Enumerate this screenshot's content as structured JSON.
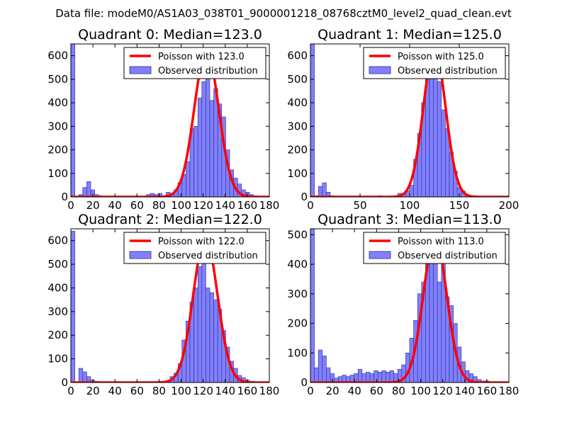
{
  "suptitle": "Data file: modeM0/AS1A03_038T01_9000001218_08768cztM0_level2_quad_clean.evt",
  "colors": {
    "hist_fill": "#8080ff",
    "hist_edge": "#2a2a8a",
    "poisson_line": "#ff0000",
    "axes": "#000000"
  },
  "chart_data": [
    {
      "type": "bar",
      "title": "Quadrant 0: Median=123.0",
      "xlim": [
        0,
        180
      ],
      "ylim": [
        0,
        650
      ],
      "xticks": [
        0,
        20,
        40,
        60,
        80,
        100,
        120,
        140,
        160,
        180
      ],
      "yticks": [
        0,
        100,
        200,
        300,
        400,
        500,
        600
      ],
      "legend": {
        "placement": "top-right",
        "line_label": "Poisson with 123.0",
        "bar_label": "Observed distribution"
      },
      "poisson_mean": 123.0,
      "poisson_peak": 620,
      "bin_width": 3.6,
      "hist": [
        {
          "x": 0,
          "v": 650
        },
        {
          "x": 7.2,
          "v": 10
        },
        {
          "x": 10.8,
          "v": 40
        },
        {
          "x": 14.4,
          "v": 65
        },
        {
          "x": 18,
          "v": 30
        },
        {
          "x": 21.6,
          "v": 10
        },
        {
          "x": 25.2,
          "v": 5
        },
        {
          "x": 28.8,
          "v": 3
        },
        {
          "x": 68.4,
          "v": 10
        },
        {
          "x": 72,
          "v": 15
        },
        {
          "x": 75.6,
          "v": 10
        },
        {
          "x": 79.2,
          "v": 15
        },
        {
          "x": 82.8,
          "v": 5
        },
        {
          "x": 86.4,
          "v": 20
        },
        {
          "x": 90,
          "v": 15
        },
        {
          "x": 93.6,
          "v": 30
        },
        {
          "x": 97.2,
          "v": 60
        },
        {
          "x": 100.8,
          "v": 95
        },
        {
          "x": 104.4,
          "v": 150
        },
        {
          "x": 108,
          "v": 290
        },
        {
          "x": 111.6,
          "v": 300
        },
        {
          "x": 115.2,
          "v": 420
        },
        {
          "x": 118.8,
          "v": 490
        },
        {
          "x": 122.4,
          "v": 580
        },
        {
          "x": 126,
          "v": 410
        },
        {
          "x": 129.6,
          "v": 460
        },
        {
          "x": 133.2,
          "v": 395
        },
        {
          "x": 136.8,
          "v": 340
        },
        {
          "x": 140.4,
          "v": 200
        },
        {
          "x": 144,
          "v": 115
        },
        {
          "x": 147.6,
          "v": 80
        },
        {
          "x": 151.2,
          "v": 55
        },
        {
          "x": 154.8,
          "v": 30
        },
        {
          "x": 158.4,
          "v": 20
        },
        {
          "x": 162,
          "v": 10
        },
        {
          "x": 165.6,
          "v": 5
        }
      ]
    },
    {
      "type": "bar",
      "title": "Quadrant 1: Median=125.0",
      "xlim": [
        0,
        200
      ],
      "ylim": [
        0,
        650
      ],
      "xticks": [
        0,
        50,
        100,
        150,
        200
      ],
      "yticks": [
        0,
        100,
        200,
        300,
        400,
        500,
        600
      ],
      "legend": {
        "placement": "top-right",
        "line_label": "Poisson with 125.0",
        "bar_label": "Observed distribution"
      },
      "poisson_mean": 125.0,
      "poisson_peak": 630,
      "bin_width": 4,
      "hist": [
        {
          "x": 0,
          "v": 650
        },
        {
          "x": 4,
          "v": 5
        },
        {
          "x": 8,
          "v": 45
        },
        {
          "x": 12,
          "v": 60
        },
        {
          "x": 16,
          "v": 20
        },
        {
          "x": 20,
          "v": 5
        },
        {
          "x": 68,
          "v": 5
        },
        {
          "x": 72,
          "v": 3
        },
        {
          "x": 84,
          "v": 5
        },
        {
          "x": 88,
          "v": 15
        },
        {
          "x": 92,
          "v": 10
        },
        {
          "x": 96,
          "v": 25
        },
        {
          "x": 100,
          "v": 50
        },
        {
          "x": 104,
          "v": 160
        },
        {
          "x": 108,
          "v": 270
        },
        {
          "x": 112,
          "v": 400
        },
        {
          "x": 116,
          "v": 530
        },
        {
          "x": 120,
          "v": 630
        },
        {
          "x": 124,
          "v": 600
        },
        {
          "x": 128,
          "v": 490
        },
        {
          "x": 132,
          "v": 370
        },
        {
          "x": 136,
          "v": 290
        },
        {
          "x": 140,
          "v": 190
        },
        {
          "x": 144,
          "v": 110
        },
        {
          "x": 148,
          "v": 40
        },
        {
          "x": 152,
          "v": 25
        },
        {
          "x": 156,
          "v": 10
        },
        {
          "x": 160,
          "v": 5
        },
        {
          "x": 164,
          "v": 5
        },
        {
          "x": 176,
          "v": 3
        }
      ]
    },
    {
      "type": "bar",
      "title": "Quadrant 2: Median=122.0",
      "xlim": [
        0,
        180
      ],
      "ylim": [
        0,
        650
      ],
      "xticks": [
        0,
        20,
        40,
        60,
        80,
        100,
        120,
        140,
        160,
        180
      ],
      "yticks": [
        0,
        100,
        200,
        300,
        400,
        500,
        600
      ],
      "legend": {
        "placement": "top-right",
        "line_label": "Poisson with 122.0",
        "bar_label": "Observed distribution"
      },
      "poisson_mean": 122.0,
      "poisson_peak": 610,
      "bin_width": 3.6,
      "hist": [
        {
          "x": 0,
          "v": 640
        },
        {
          "x": 7.2,
          "v": 60
        },
        {
          "x": 10.8,
          "v": 45
        },
        {
          "x": 14.4,
          "v": 25
        },
        {
          "x": 18,
          "v": 10
        },
        {
          "x": 21.6,
          "v": 5
        },
        {
          "x": 25.2,
          "v": 3
        },
        {
          "x": 57.6,
          "v": 3
        },
        {
          "x": 82.8,
          "v": 5
        },
        {
          "x": 86.4,
          "v": 5
        },
        {
          "x": 90,
          "v": 25
        },
        {
          "x": 93.6,
          "v": 40
        },
        {
          "x": 97.2,
          "v": 80
        },
        {
          "x": 100.8,
          "v": 180
        },
        {
          "x": 104.4,
          "v": 260
        },
        {
          "x": 108,
          "v": 340
        },
        {
          "x": 111.6,
          "v": 400
        },
        {
          "x": 115.2,
          "v": 490
        },
        {
          "x": 118.8,
          "v": 570
        },
        {
          "x": 122.4,
          "v": 400
        },
        {
          "x": 126,
          "v": 380
        },
        {
          "x": 129.6,
          "v": 350
        },
        {
          "x": 133.2,
          "v": 310
        },
        {
          "x": 136.8,
          "v": 220
        },
        {
          "x": 140.4,
          "v": 150
        },
        {
          "x": 144,
          "v": 90
        },
        {
          "x": 147.6,
          "v": 60
        },
        {
          "x": 151.2,
          "v": 30
        },
        {
          "x": 154.8,
          "v": 20
        },
        {
          "x": 158.4,
          "v": 10
        },
        {
          "x": 162,
          "v": 5
        }
      ]
    },
    {
      "type": "bar",
      "title": "Quadrant 3: Median=113.0",
      "xlim": [
        0,
        180
      ],
      "ylim": [
        0,
        520
      ],
      "xticks": [
        0,
        20,
        40,
        60,
        80,
        100,
        120,
        140,
        160,
        180
      ],
      "yticks": [
        0,
        100,
        200,
        300,
        400,
        500
      ],
      "legend": {
        "placement": "top-right",
        "line_label": "Poisson with 113.0",
        "bar_label": "Observed distribution"
      },
      "poisson_mean": 113.0,
      "poisson_peak": 490,
      "bin_width": 3.6,
      "hist": [
        {
          "x": 0,
          "v": 520
        },
        {
          "x": 3.6,
          "v": 50
        },
        {
          "x": 7.2,
          "v": 110
        },
        {
          "x": 10.8,
          "v": 90
        },
        {
          "x": 14.4,
          "v": 50
        },
        {
          "x": 18,
          "v": 30
        },
        {
          "x": 21.6,
          "v": 15
        },
        {
          "x": 25.2,
          "v": 20
        },
        {
          "x": 28.8,
          "v": 25
        },
        {
          "x": 32.4,
          "v": 20
        },
        {
          "x": 36,
          "v": 25
        },
        {
          "x": 39.6,
          "v": 30
        },
        {
          "x": 43.2,
          "v": 45
        },
        {
          "x": 46.8,
          "v": 30
        },
        {
          "x": 50.4,
          "v": 35
        },
        {
          "x": 54,
          "v": 30
        },
        {
          "x": 57.6,
          "v": 40
        },
        {
          "x": 61.2,
          "v": 35
        },
        {
          "x": 64.8,
          "v": 40
        },
        {
          "x": 68.4,
          "v": 35
        },
        {
          "x": 72,
          "v": 40
        },
        {
          "x": 75.6,
          "v": 30
        },
        {
          "x": 79.2,
          "v": 45
        },
        {
          "x": 82.8,
          "v": 60
        },
        {
          "x": 86.4,
          "v": 100
        },
        {
          "x": 90,
          "v": 150
        },
        {
          "x": 93.6,
          "v": 210
        },
        {
          "x": 97.2,
          "v": 300
        },
        {
          "x": 100.8,
          "v": 340
        },
        {
          "x": 104.4,
          "v": 430
        },
        {
          "x": 108,
          "v": 470
        },
        {
          "x": 111.6,
          "v": 440
        },
        {
          "x": 115.2,
          "v": 340
        },
        {
          "x": 118.8,
          "v": 480
        },
        {
          "x": 122.4,
          "v": 290
        },
        {
          "x": 126,
          "v": 260
        },
        {
          "x": 129.6,
          "v": 200
        },
        {
          "x": 133.2,
          "v": 120
        },
        {
          "x": 136.8,
          "v": 70
        },
        {
          "x": 140.4,
          "v": 40
        },
        {
          "x": 144,
          "v": 30
        },
        {
          "x": 147.6,
          "v": 20
        },
        {
          "x": 151.2,
          "v": 10
        },
        {
          "x": 154.8,
          "v": 5
        },
        {
          "x": 158.4,
          "v": 5
        }
      ]
    }
  ]
}
